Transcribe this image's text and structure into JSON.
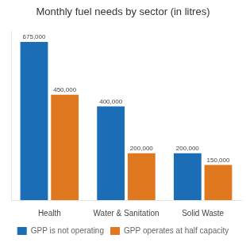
{
  "chart_data": {
    "type": "bar",
    "title": "Monthly fuel needs by sector (in litres)",
    "categories": [
      "Health",
      "Water & Sanitation",
      "Solid Waste"
    ],
    "series": [
      {
        "name": "GPP is not operating",
        "color": "#1b6db5",
        "values": [
          675000,
          400000,
          200000
        ],
        "value_labels": [
          "675,000",
          "400,000",
          "200,000"
        ]
      },
      {
        "name": "GPP operates at half capacity",
        "color": "#e07820",
        "values": [
          450000,
          200000,
          150000
        ],
        "value_labels": [
          "450,000",
          "200,000",
          "150,000"
        ]
      }
    ],
    "ylim": [
      0,
      720000
    ],
    "grid": false,
    "legend": "bottom",
    "data_labels": true,
    "tick_labels": "x"
  }
}
